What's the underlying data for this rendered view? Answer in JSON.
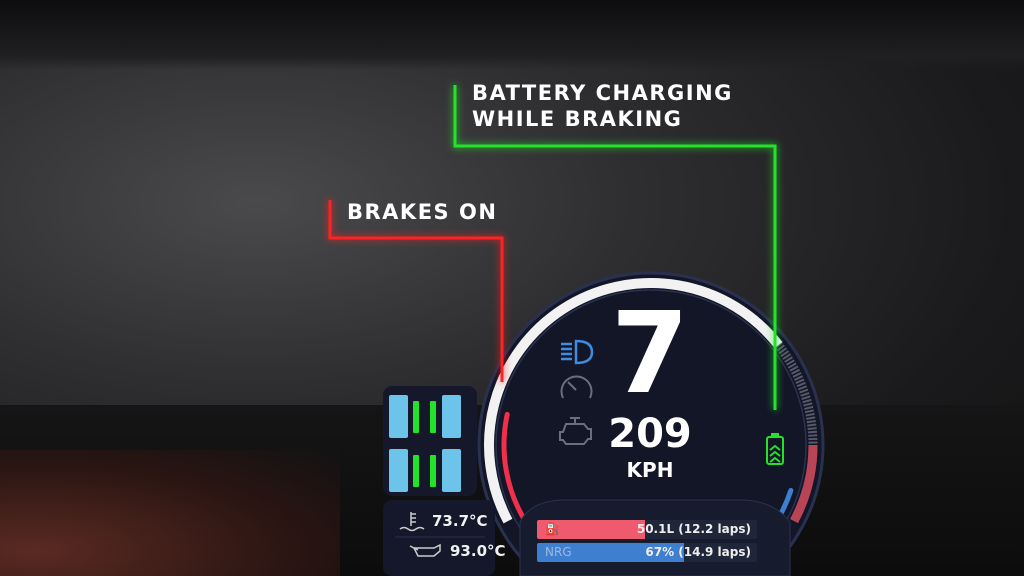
{
  "callouts": {
    "battery": {
      "line1": "BATTERY CHARGING",
      "line2": "WHILE BRAKING",
      "color": "#22e22a"
    },
    "brakes": {
      "label": "BRAKES ON",
      "color": "#ff2222"
    }
  },
  "hud": {
    "gear": "7",
    "speed": "209",
    "speed_unit": "KPH",
    "icons": [
      "headlight-icon",
      "speedometer-icon",
      "engine-icon",
      "battery-charging-icon",
      "fuel-pump-icon",
      "coolant-temp-icon",
      "oil-temp-icon"
    ],
    "water_temp": "73.7°C",
    "oil_temp": "93.0°C",
    "fuel": {
      "text": "50.1L (12.2 laps)",
      "fill_percent": 49,
      "color": "#f05a6e"
    },
    "energy": {
      "tag": "NRG",
      "text": "67% (14.9 laps)",
      "fill_percent": 67,
      "color": "#3f7fd0"
    },
    "rpm_fraction": 0.72,
    "brake_color": "#f0304a",
    "tyre_color": "#6cc4ea",
    "brake_wear_color": "#22e22a"
  }
}
